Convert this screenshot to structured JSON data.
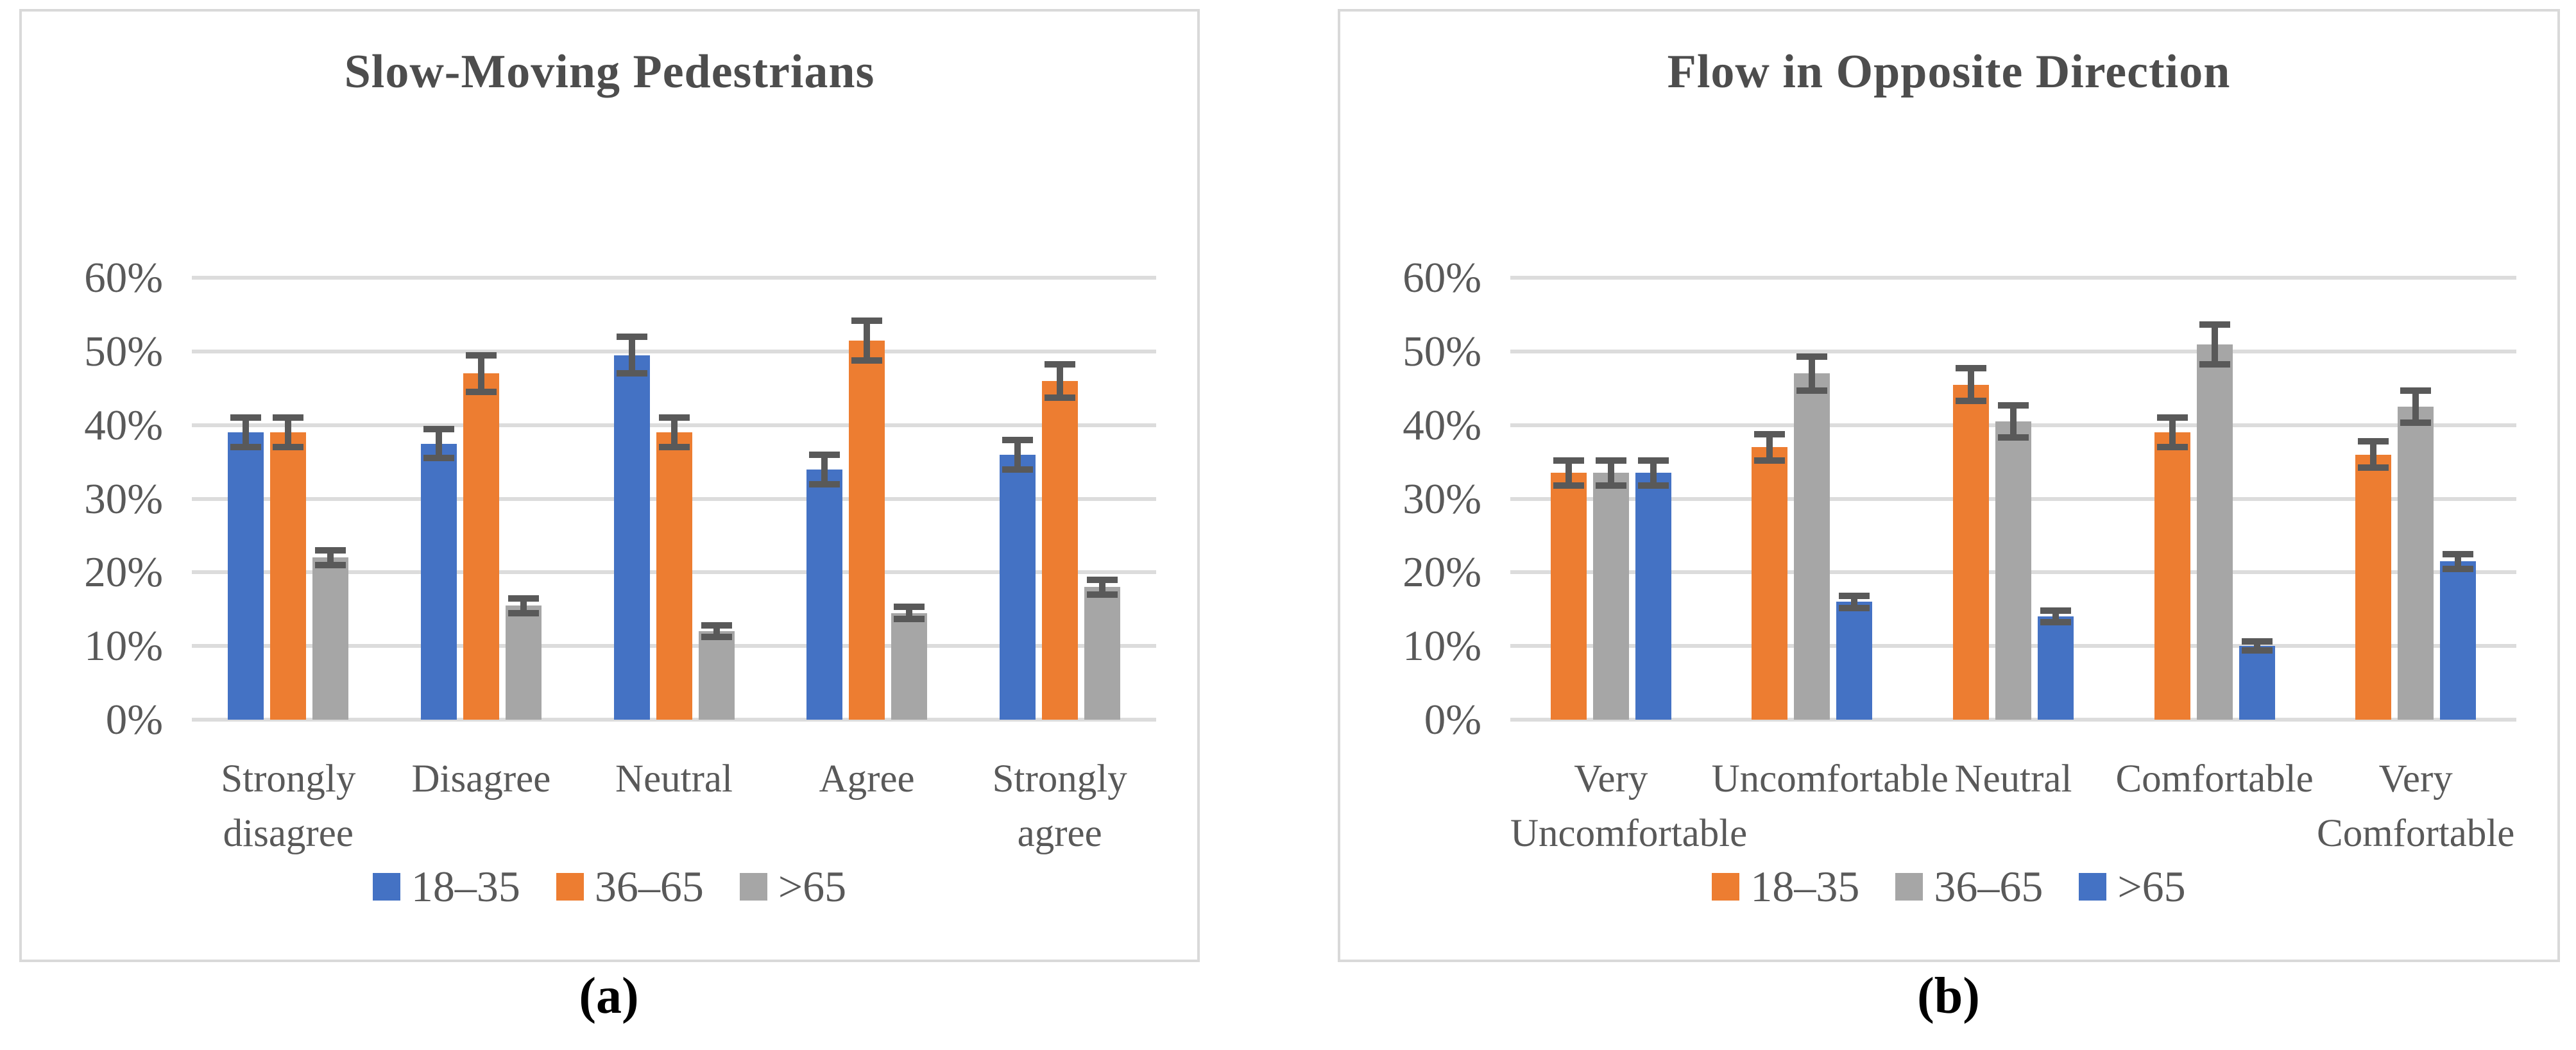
{
  "colors": {
    "blue": "#4472C4",
    "orange": "#ED7D31",
    "gray": "#A6A6A6",
    "error_bar": "#595959",
    "gridline": "#DCDCDC",
    "axis_text": "#595959",
    "title_text": "#4D4D4D",
    "caption_text": "#000000",
    "panel_border": "#D9D9D9"
  },
  "y_axis": {
    "tick_labels": [
      "0%",
      "10%",
      "20%",
      "30%",
      "40%",
      "50%",
      "60%"
    ],
    "min": 0,
    "max": 60,
    "step": 10
  },
  "chart_data": [
    {
      "type": "bar",
      "title": "Slow-Moving Pedestrians",
      "caption": "(a)",
      "xlabel": "",
      "ylabel": "",
      "ylim": [
        0,
        60
      ],
      "yticks": [
        0,
        10,
        20,
        30,
        40,
        50,
        60
      ],
      "grid": true,
      "legend_position": "bottom",
      "error_bars": true,
      "categories": [
        "Strongly\ndisagree",
        "Disagree",
        "Neutral",
        "Agree",
        "Strongly agree"
      ],
      "series": [
        {
          "name": "18–35",
          "color_key": "blue",
          "values": [
            39,
            37.5,
            49.5,
            34,
            36
          ],
          "errors": [
            2,
            2,
            2.5,
            2,
            2
          ]
        },
        {
          "name": "36–65",
          "color_key": "orange",
          "values": [
            39,
            47,
            39,
            51.5,
            46
          ],
          "errors": [
            2,
            2.5,
            2,
            2.7,
            2.3
          ]
        },
        {
          "name": ">65",
          "color_key": "gray",
          "values": [
            22,
            15.5,
            12,
            14.5,
            18
          ],
          "errors": [
            1,
            1,
            0.8,
            0.8,
            1
          ]
        }
      ]
    },
    {
      "type": "bar",
      "title": "Flow in Opposite Direction",
      "caption": "(b)",
      "xlabel": "",
      "ylabel": "",
      "ylim": [
        0,
        60
      ],
      "yticks": [
        0,
        10,
        20,
        30,
        40,
        50,
        60
      ],
      "grid": true,
      "legend_position": "bottom",
      "error_bars": true,
      "categories": [
        "Very\nUncomfortable",
        "Uncomfortable",
        "Neutral",
        "Comfortable",
        "Very\nComfortable"
      ],
      "series": [
        {
          "name": "18–35",
          "color_key": "orange",
          "values": [
            33.5,
            37,
            45.5,
            39,
            36
          ],
          "errors": [
            1.7,
            1.8,
            2.2,
            2,
            1.8
          ]
        },
        {
          "name": "36–65",
          "color_key": "gray",
          "values": [
            33.5,
            47,
            40.5,
            51,
            42.5
          ],
          "errors": [
            1.7,
            2.3,
            2.2,
            2.7,
            2.2
          ]
        },
        {
          "name": ">65",
          "color_key": "blue",
          "values": [
            33.5,
            16,
            14,
            10,
            21.5
          ],
          "errors": [
            1.7,
            0.8,
            0.8,
            0.6,
            1
          ]
        }
      ]
    }
  ]
}
